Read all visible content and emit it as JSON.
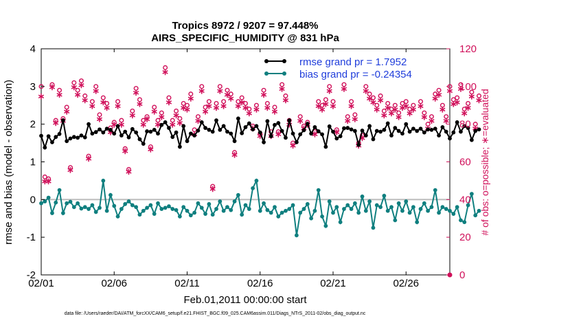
{
  "chart_data": {
    "type": "line",
    "title": "Tropics 8972 / 9207 = 97.448%",
    "subtitle": "AIRS_SPECIFIC_HUMIDITY @ 831 hPa",
    "xlabel": "Feb.01,2011 00:00:00 start",
    "ylabel": "rmse and bias (model - observation)",
    "ylabel_right": "# of obs: o=possible; ∗=evaluated",
    "x_ticks": [
      "02/01",
      "02/06",
      "02/11",
      "02/16",
      "02/21",
      "02/26"
    ],
    "x_tick_days": [
      0,
      5,
      10,
      15,
      20,
      25
    ],
    "xlim": [
      0,
      28
    ],
    "ylim": [
      -2,
      4
    ],
    "y_ticks": [
      "-2",
      "-1",
      "0",
      "1",
      "2",
      "3",
      "4"
    ],
    "ylim_right": [
      0,
      120
    ],
    "y_ticks_right": [
      "0",
      "20",
      "40",
      "60",
      "80",
      "100",
      "120"
    ],
    "legend": {
      "position": "top-right",
      "entries": [
        "rmse grand pr = 1.7952",
        "bias grand pr = -0.24354"
      ]
    },
    "colors": {
      "rmse": "#000000",
      "bias": "#0f7f7f",
      "obs": "#d0105a",
      "zero_line": "#bbbbbb",
      "legend_text": "#1f3ddb"
    },
    "step_days": 0.25,
    "rmse": [
      1.69,
      1.38,
      1.68,
      1.52,
      1.66,
      1.74,
      2.1,
      1.55,
      1.62,
      1.66,
      1.64,
      1.7,
      1.65,
      2.0,
      1.75,
      1.79,
      1.86,
      1.78,
      1.88,
      1.85,
      1.75,
      1.95,
      1.7,
      1.8,
      1.65,
      1.87,
      1.78,
      1.6,
      1.48,
      1.81,
      1.8,
      1.85,
      1.75,
      1.98,
      2.05,
      1.9,
      1.66,
      1.78,
      1.4,
      1.95,
      1.55,
      1.75,
      1.7,
      1.83,
      2.05,
      1.9,
      1.85,
      1.8,
      2.1,
      1.85,
      1.95,
      1.8,
      1.75,
      1.55,
      2.15,
      1.76,
      1.92,
      2.02,
      1.86,
      1.95,
      1.78,
      1.52,
      2.08,
      1.68,
      1.98,
      2.03,
      1.82,
      1.64,
      2.1,
      1.75,
      1.52,
      1.73,
      1.84,
      2.01,
      1.75,
      1.92,
      1.81,
      1.73,
      1.4,
      1.94,
      1.8,
      1.62,
      1.68,
      1.89,
      1.9,
      1.86,
      1.82,
      1.45,
      1.83,
      1.7,
      1.95,
      1.6,
      1.82,
      1.8,
      1.85,
      2.02,
      1.7,
      1.9,
      1.82,
      1.75,
      2.0,
      1.8,
      1.88,
      1.82,
      1.88,
      1.78,
      1.86,
      1.85,
      1.88,
      1.7,
      1.92,
      1.8,
      1.62,
      1.78,
      2.05,
      1.8,
      1.95,
      1.9,
      1.58,
      1.82,
      1.86
    ],
    "bias": [
      -0.1,
      -0.05,
      0.05,
      -0.36,
      -0.08,
      0.25,
      -0.36,
      -0.1,
      -0.06,
      -0.2,
      -0.1,
      -0.24,
      -0.2,
      -0.25,
      -0.15,
      -0.33,
      -0.22,
      0.5,
      -0.3,
      0.12,
      -0.17,
      -0.45,
      -0.25,
      -0.12,
      -0.05,
      -0.15,
      -0.2,
      -0.4,
      -0.3,
      -0.22,
      -0.15,
      -0.38,
      -0.1,
      -0.25,
      -0.22,
      -0.18,
      -0.25,
      -0.28,
      -0.45,
      -0.2,
      -0.3,
      -0.42,
      -0.35,
      -0.1,
      -0.22,
      -0.38,
      -0.12,
      -0.4,
      -0.25,
      -0.05,
      -0.3,
      -0.2,
      -0.28,
      -0.05,
      0.12,
      -0.4,
      -0.15,
      -0.25,
      0.3,
      0.5,
      -0.3,
      -0.1,
      -0.28,
      -0.35,
      -0.2,
      -0.45,
      -0.35,
      -0.3,
      -0.25,
      -0.15,
      -0.95,
      -0.35,
      -0.25,
      -0.12,
      -0.5,
      -0.3,
      0.25,
      -0.45,
      -0.7,
      -0.05,
      -0.35,
      -0.2,
      -0.6,
      -0.25,
      -0.15,
      -0.25,
      -0.1,
      -0.35,
      0.08,
      -0.3,
      -0.05,
      -0.75,
      -0.15,
      -0.2,
      0.1,
      -0.3,
      -0.2,
      -0.55,
      -0.1,
      -0.3,
      -0.05,
      -0.35,
      -0.2,
      -0.6,
      -0.25,
      -0.1,
      -0.3,
      -0.2,
      0.25,
      -0.35,
      -0.2,
      -0.25,
      -0.3,
      -0.38,
      -0.2,
      -0.55,
      -0.6,
      -0.15,
      0.15,
      -0.42,
      -0.3
    ],
    "obs_possible": [
      100,
      52,
      51,
      101,
      82,
      98,
      83,
      89,
      57,
      102,
      98,
      103,
      95,
      63,
      92,
      100,
      85,
      94,
      91,
      78,
      81,
      92,
      82,
      67,
      56,
      87,
      99,
      93,
      82,
      84,
      68,
      89,
      82,
      86,
      110,
      94,
      82,
      87,
      83,
      91,
      90,
      96,
      77,
      84,
      100,
      89,
      92,
      47,
      91,
      100,
      92,
      98,
      96,
      65,
      92,
      94,
      91,
      88,
      79,
      90,
      75,
      98,
      91,
      76,
      89,
      76,
      101,
      95,
      82,
      70,
      112,
      84,
      79,
      81,
      112,
      76,
      92,
      90,
      93,
      100,
      92,
      77,
      115,
      101,
      84,
      92,
      85,
      70,
      74,
      100,
      96,
      94,
      90,
      95,
      87,
      91,
      88,
      90,
      86,
      91,
      92,
      88,
      90,
      111,
      92,
      86,
      80,
      84,
      96,
      98,
      90,
      84,
      100,
      93,
      94,
      101,
      88,
      91,
      97,
      80,
      95
    ],
    "obs_evaluated": [
      95,
      50,
      50,
      100,
      81,
      96,
      82,
      87,
      56,
      100,
      96,
      101,
      93,
      62,
      90,
      98,
      83,
      92,
      89,
      76,
      80,
      90,
      80,
      66,
      55,
      85,
      97,
      91,
      80,
      83,
      67,
      87,
      80,
      84,
      108,
      92,
      80,
      85,
      81,
      89,
      88,
      94,
      75,
      82,
      98,
      87,
      90,
      46,
      89,
      98,
      90,
      96,
      94,
      64,
      90,
      92,
      89,
      86,
      78,
      88,
      74,
      96,
      89,
      74,
      87,
      75,
      99,
      93,
      80,
      69,
      110,
      82,
      78,
      80,
      110,
      75,
      90,
      88,
      91,
      98,
      90,
      76,
      113,
      99,
      82,
      90,
      83,
      69,
      73,
      98,
      94,
      92,
      88,
      93,
      85,
      89,
      86,
      88,
      84,
      89,
      90,
      86,
      88,
      109,
      90,
      84,
      78,
      82,
      94,
      96,
      88,
      82,
      98,
      91,
      92,
      99,
      86,
      89,
      95,
      78,
      93
    ],
    "right_edge_marker": {
      "day": 28,
      "value": 0
    }
  },
  "footer": "data file: /Users/raeder/DAI/ATM_forcXX/CAM6_setup/f.e21.FHIST_BGC.f09_025.CAM6assim.011/Diags_NTrS_2011-02/obs_diag_output.nc"
}
